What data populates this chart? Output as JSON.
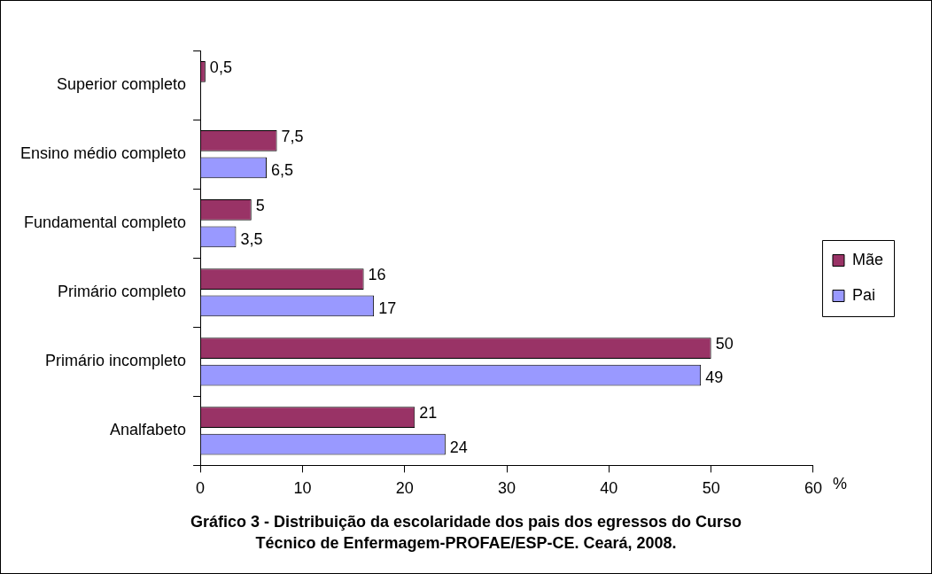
{
  "chart_data": {
    "type": "bar",
    "orientation": "horizontal",
    "title": "Gráfico 3 - Distribuição da escolaridade dos pais dos egressos do Curso Técnico de Enfermagem-PROFAE/ESP-CE. Ceará, 2008.",
    "xlabel": "%",
    "categories": [
      "Superior completo",
      "Ensino médio completo",
      "Fundamental completo",
      "Primário completo",
      "Primário incompleto",
      "Analfabeto"
    ],
    "series": [
      {
        "name": "Mãe",
        "color": "#993366",
        "values": [
          0.5,
          7.5,
          5,
          16,
          50,
          21
        ],
        "value_labels": [
          "0,5",
          "7,5",
          "5",
          "16",
          "50",
          "21"
        ]
      },
      {
        "name": "Pai",
        "color": "#9999ff",
        "values": [
          null,
          6.5,
          3.5,
          17,
          49,
          24
        ],
        "value_labels": [
          null,
          "6,5",
          "3,5",
          "17",
          "49",
          "24"
        ]
      }
    ],
    "xlim": [
      0,
      60
    ],
    "xticks": [
      0,
      10,
      20,
      30,
      40,
      50,
      60
    ],
    "grid": false,
    "legend": "right"
  }
}
